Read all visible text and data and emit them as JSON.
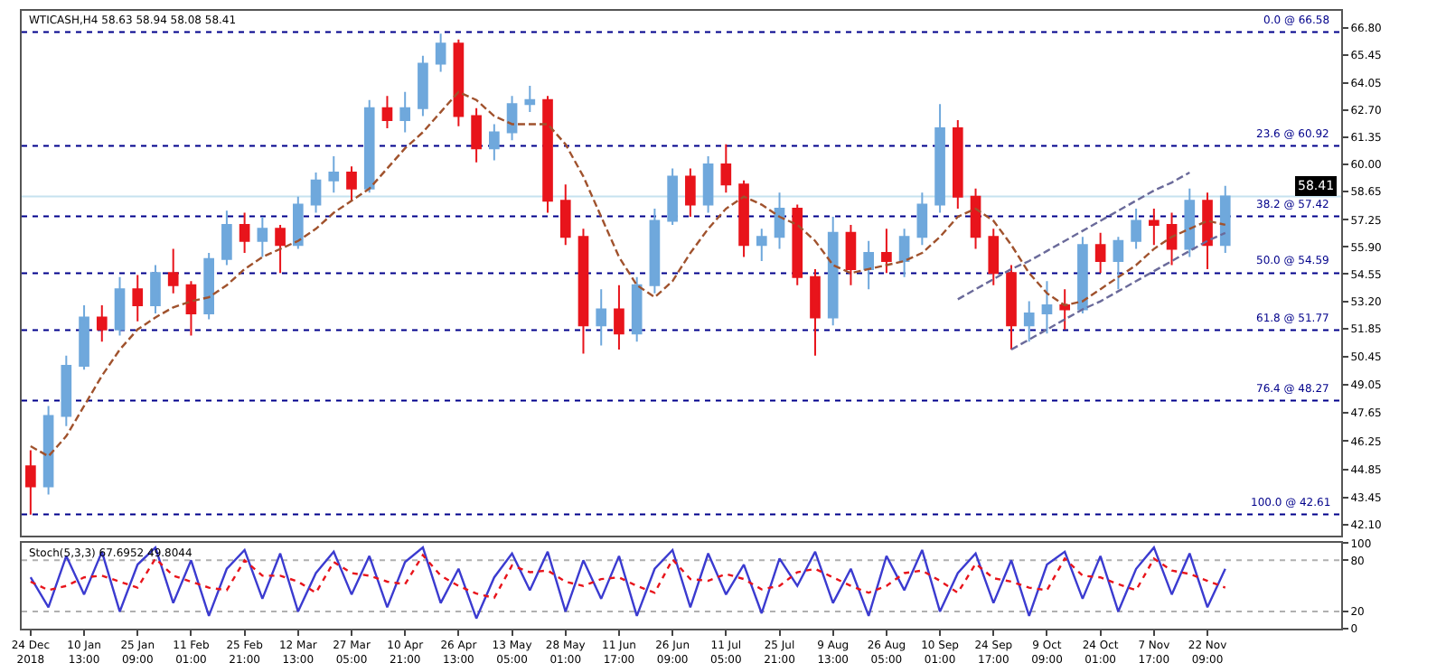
{
  "chart_data": [
    {
      "type": "candlestick",
      "title": "WTICASH,H4 58.63 58.94 58.08 58.41",
      "categories": [
        null,
        null,
        null,
        null,
        null,
        null,
        null,
        null,
        null,
        null,
        null,
        null,
        null,
        null,
        null,
        null,
        null,
        null,
        null,
        null,
        null,
        null,
        null,
        null,
        null,
        null,
        null,
        null,
        null,
        null,
        null,
        null,
        null,
        null,
        null,
        null,
        null,
        null,
        null,
        null,
        null,
        null,
        null,
        null,
        null,
        null,
        null,
        null,
        null,
        null,
        null,
        null,
        null,
        null,
        null,
        null,
        null,
        null,
        null,
        null,
        null,
        null,
        null,
        null,
        null,
        null,
        null,
        null
      ],
      "ohlc": [
        [
          45.0,
          45.8,
          42.6,
          44.0
        ],
        [
          44.0,
          48.0,
          43.6,
          47.5
        ],
        [
          47.5,
          50.5,
          47.0,
          50.0
        ],
        [
          50.0,
          53.0,
          49.8,
          52.4
        ],
        [
          52.4,
          53.0,
          51.2,
          51.8
        ],
        [
          51.8,
          54.4,
          51.5,
          53.8
        ],
        [
          53.8,
          54.5,
          52.2,
          53.0
        ],
        [
          53.0,
          55.0,
          52.6,
          54.6
        ],
        [
          54.6,
          55.8,
          53.6,
          54.0
        ],
        [
          54.0,
          54.2,
          51.5,
          52.6
        ],
        [
          52.6,
          55.6,
          52.3,
          55.3
        ],
        [
          55.3,
          57.7,
          55.0,
          57.0
        ],
        [
          57.0,
          57.6,
          55.6,
          56.2
        ],
        [
          56.2,
          57.4,
          55.4,
          56.8
        ],
        [
          56.8,
          57.0,
          54.6,
          56.0
        ],
        [
          56.0,
          58.4,
          55.8,
          58.0
        ],
        [
          58.0,
          59.6,
          57.6,
          59.2
        ],
        [
          59.2,
          60.4,
          58.6,
          59.6
        ],
        [
          59.6,
          59.9,
          58.2,
          58.8
        ],
        [
          58.8,
          63.2,
          58.6,
          62.8
        ],
        [
          62.8,
          63.4,
          61.8,
          62.2
        ],
        [
          62.2,
          63.6,
          61.6,
          62.8
        ],
        [
          62.8,
          65.4,
          62.4,
          65.0
        ],
        [
          65.0,
          66.5,
          64.6,
          66.0
        ],
        [
          66.0,
          66.2,
          61.9,
          62.4
        ],
        [
          62.4,
          62.8,
          60.1,
          60.8
        ],
        [
          60.8,
          62.0,
          60.2,
          61.6
        ],
        [
          61.6,
          63.4,
          61.2,
          63.0
        ],
        [
          63.0,
          63.9,
          62.6,
          63.2
        ],
        [
          63.2,
          63.4,
          57.6,
          58.2
        ],
        [
          58.2,
          59.0,
          56.0,
          56.4
        ],
        [
          56.4,
          56.8,
          50.6,
          52.0
        ],
        [
          52.0,
          53.8,
          51.0,
          52.8
        ],
        [
          52.8,
          54.0,
          50.8,
          51.6
        ],
        [
          51.6,
          54.4,
          51.2,
          54.0
        ],
        [
          54.0,
          57.8,
          53.6,
          57.2
        ],
        [
          57.2,
          59.8,
          57.0,
          59.4
        ],
        [
          59.4,
          59.8,
          57.4,
          58.0
        ],
        [
          58.0,
          60.4,
          57.6,
          60.0
        ],
        [
          60.0,
          61.0,
          58.6,
          59.0
        ],
        [
          59.0,
          59.2,
          55.4,
          56.0
        ],
        [
          56.0,
          56.8,
          55.2,
          56.4
        ],
        [
          56.4,
          58.6,
          55.8,
          57.8
        ],
        [
          57.8,
          58.0,
          54.0,
          54.4
        ],
        [
          54.4,
          54.8,
          50.5,
          52.4
        ],
        [
          52.4,
          57.4,
          52.0,
          56.6
        ],
        [
          56.6,
          57.0,
          54.0,
          54.8
        ],
        [
          54.8,
          56.2,
          53.8,
          55.6
        ],
        [
          55.6,
          56.8,
          54.6,
          55.2
        ],
        [
          55.2,
          56.8,
          54.4,
          56.4
        ],
        [
          56.4,
          58.6,
          56.0,
          58.0
        ],
        [
          58.0,
          63.0,
          57.6,
          61.8
        ],
        [
          61.8,
          62.2,
          57.8,
          58.4
        ],
        [
          58.4,
          58.8,
          55.8,
          56.4
        ],
        [
          56.4,
          56.8,
          54.0,
          54.6
        ],
        [
          54.6,
          55.0,
          50.8,
          52.0
        ],
        [
          52.0,
          53.2,
          51.2,
          52.6
        ],
        [
          52.6,
          54.2,
          51.6,
          53.0
        ],
        [
          53.0,
          53.8,
          51.8,
          52.8
        ],
        [
          52.8,
          56.4,
          52.6,
          56.0
        ],
        [
          56.0,
          56.6,
          54.6,
          55.2
        ],
        [
          55.2,
          56.4,
          53.8,
          56.2
        ],
        [
          56.2,
          57.8,
          55.8,
          57.2
        ],
        [
          57.2,
          57.8,
          56.0,
          57.0
        ],
        [
          57.0,
          57.6,
          55.0,
          55.8
        ],
        [
          55.8,
          58.8,
          55.4,
          58.2
        ],
        [
          58.2,
          58.6,
          54.8,
          56.0
        ],
        [
          56.0,
          58.94,
          55.6,
          58.41
        ]
      ],
      "colors": [
        "#e8141b",
        "#6fa8dc",
        "#6fa8dc",
        "#6fa8dc",
        "#e8141b",
        "#6fa8dc",
        "#e8141b",
        "#6fa8dc",
        "#e8141b",
        "#e8141b",
        "#6fa8dc",
        "#6fa8dc",
        "#e8141b",
        "#6fa8dc",
        "#e8141b",
        "#6fa8dc",
        "#6fa8dc",
        "#6fa8dc",
        "#e8141b",
        "#6fa8dc",
        "#e8141b",
        "#6fa8dc",
        "#6fa8dc",
        "#6fa8dc",
        "#e8141b",
        "#e8141b",
        "#6fa8dc",
        "#6fa8dc",
        "#6fa8dc",
        "#e8141b",
        "#e8141b",
        "#e8141b",
        "#6fa8dc",
        "#e8141b",
        "#6fa8dc",
        "#6fa8dc",
        "#6fa8dc",
        "#e8141b",
        "#6fa8dc",
        "#e8141b",
        "#e8141b",
        "#6fa8dc",
        "#6fa8dc",
        "#e8141b",
        "#e8141b",
        "#6fa8dc",
        "#e8141b",
        "#6fa8dc",
        "#e8141b",
        "#6fa8dc",
        "#6fa8dc",
        "#6fa8dc",
        "#e8141b",
        "#e8141b",
        "#e8141b",
        "#e8141b",
        "#6fa8dc",
        "#6fa8dc",
        "#e8141b",
        "#6fa8dc",
        "#e8141b",
        "#6fa8dc",
        "#6fa8dc",
        "#e8141b",
        "#e8141b",
        "#6fa8dc",
        "#e8141b",
        "#6fa8dc"
      ],
      "series": [
        {
          "type": "line",
          "color": "#a0522d",
          "line_style": "dashed",
          "values": [
            46.0,
            45.5,
            46.5,
            48.0,
            49.5,
            50.8,
            51.8,
            52.4,
            52.9,
            53.2,
            53.4,
            54.0,
            54.8,
            55.4,
            55.8,
            56.2,
            56.8,
            57.6,
            58.2,
            58.8,
            59.8,
            60.8,
            61.6,
            62.6,
            63.6,
            63.2,
            62.4,
            62.0,
            62.0,
            62.0,
            61.0,
            59.4,
            57.4,
            55.4,
            54.0,
            53.4,
            54.2,
            55.6,
            56.8,
            57.8,
            58.4,
            58.0,
            57.4,
            57.0,
            56.2,
            55.0,
            54.6,
            54.8,
            55.0,
            55.2,
            55.6,
            56.4,
            57.4,
            57.8,
            57.2,
            56.0,
            54.6,
            53.6,
            53.0,
            53.2,
            53.8,
            54.4,
            55.0,
            55.8,
            56.4,
            56.8,
            57.2,
            57.0
          ]
        },
        {
          "type": "line",
          "color": "#6a6a9a",
          "line_style": "dashed",
          "values": [
            null,
            null,
            null,
            null,
            null,
            null,
            null,
            null,
            null,
            null,
            null,
            null,
            null,
            null,
            null,
            null,
            null,
            null,
            null,
            null,
            null,
            null,
            null,
            null,
            null,
            null,
            null,
            null,
            null,
            null,
            null,
            null,
            null,
            null,
            null,
            null,
            null,
            null,
            null,
            null,
            null,
            null,
            null,
            null,
            null,
            null,
            null,
            null,
            null,
            null,
            null,
            null,
            53.3,
            53.8,
            54.3,
            54.8,
            55.2,
            55.7,
            56.2,
            56.7,
            57.2,
            57.7,
            58.2,
            58.7,
            59.1,
            59.6,
            null,
            null
          ]
        },
        {
          "type": "line",
          "color": "#6a6a9a",
          "line_style": "dashed",
          "values": [
            null,
            null,
            null,
            null,
            null,
            null,
            null,
            null,
            null,
            null,
            null,
            null,
            null,
            null,
            null,
            null,
            null,
            null,
            null,
            null,
            null,
            null,
            null,
            null,
            null,
            null,
            null,
            null,
            null,
            null,
            null,
            null,
            null,
            null,
            null,
            null,
            null,
            null,
            null,
            null,
            null,
            null,
            null,
            null,
            null,
            null,
            null,
            null,
            null,
            null,
            null,
            null,
            null,
            null,
            null,
            50.8,
            51.3,
            51.8,
            52.3,
            52.8,
            53.2,
            53.7,
            54.2,
            54.7,
            55.2,
            55.7,
            56.2,
            56.6
          ]
        }
      ],
      "ref_lines": [
        {
          "axis": "y",
          "value": 66.58,
          "label": "0.0 @ 66.58",
          "color": "#00008b",
          "line_style": "dotted"
        },
        {
          "axis": "y",
          "value": 60.92,
          "label": "23.6 @ 60.92",
          "color": "#00008b",
          "line_style": "dotted"
        },
        {
          "axis": "y",
          "value": 57.42,
          "label": "38.2 @ 57.42",
          "color": "#00008b",
          "line_style": "dotted"
        },
        {
          "axis": "y",
          "value": 54.59,
          "label": "50.0 @ 54.59",
          "color": "#00008b",
          "line_style": "dotted"
        },
        {
          "axis": "y",
          "value": 51.77,
          "label": "61.8 @ 51.77",
          "color": "#00008b",
          "line_style": "dotted"
        },
        {
          "axis": "y",
          "value": 48.27,
          "label": "76.4 @ 48.27",
          "color": "#00008b",
          "line_style": "dotted"
        },
        {
          "axis": "y",
          "value": 42.61,
          "label": "100.0 @ 42.61",
          "color": "#00008b",
          "line_style": "dotted"
        },
        {
          "axis": "y",
          "value": 58.41,
          "label": "58.41",
          "color": "#c6e2f0",
          "line_style": "solid"
        }
      ],
      "ylim": [
        41.55,
        67.63
      ],
      "yticks": [
        {
          "value": 42.1,
          "label": "42.10"
        },
        {
          "value": 43.45,
          "label": "43.45"
        },
        {
          "value": 44.85,
          "label": "44.85"
        },
        {
          "value": 46.25,
          "label": "46.25"
        },
        {
          "value": 47.65,
          "label": "47.65"
        },
        {
          "value": 49.05,
          "label": "49.05"
        },
        {
          "value": 50.45,
          "label": "50.45"
        },
        {
          "value": 51.85,
          "label": "51.85"
        },
        {
          "value": 53.2,
          "label": "53.20"
        },
        {
          "value": 54.55,
          "label": "54.55"
        },
        {
          "value": 55.9,
          "label": "55.90"
        },
        {
          "value": 57.25,
          "label": "57.25"
        },
        {
          "value": 58.65,
          "label": "58.65"
        },
        {
          "value": 60.0,
          "label": "60.00"
        },
        {
          "value": 61.35,
          "label": "61.35"
        },
        {
          "value": 62.7,
          "label": "62.70"
        },
        {
          "value": 64.05,
          "label": "64.05"
        },
        {
          "value": 65.45,
          "label": "65.45"
        },
        {
          "value": 66.8,
          "label": "66.80"
        }
      ],
      "tick_labels": "y"
    },
    {
      "type": "line",
      "title": "Stoch(5,3,3) 67.6952 49.8044",
      "categories": [
        "24 Dec 2018",
        null,
        null,
        "10 Jan 13:00",
        null,
        null,
        "25 Jan 09:00",
        null,
        null,
        "11 Feb 01:00",
        null,
        null,
        "25 Feb 21:00",
        null,
        null,
        "12 Mar 13:00",
        null,
        null,
        "27 Mar 05:00",
        null,
        null,
        "10 Apr 21:00",
        null,
        null,
        "26 Apr 13:00",
        null,
        null,
        "13 May 05:00",
        null,
        null,
        "28 May 01:00",
        null,
        null,
        "11 Jun 17:00",
        null,
        null,
        "26 Jun 09:00",
        null,
        null,
        "11 Jul 05:00",
        null,
        null,
        "25 Jul 21:00",
        null,
        null,
        "9 Aug 13:00",
        null,
        null,
        "26 Aug 05:00",
        null,
        null,
        "10 Sep 01:00",
        null,
        null,
        "24 Sep 17:00",
        null,
        null,
        "9 Oct 09:00",
        null,
        null,
        "24 Oct 01:00",
        null,
        null,
        "7 Nov 17:00",
        null,
        null,
        "22 Nov 09:00",
        null
      ],
      "series": [
        {
          "color": "#3b3bd0",
          "values": [
            60,
            25,
            85,
            40,
            90,
            20,
            75,
            95,
            30,
            80,
            15,
            70,
            92,
            35,
            88,
            20,
            65,
            90,
            40,
            85,
            25,
            78,
            95,
            30,
            70,
            12,
            60,
            88,
            45,
            90,
            20,
            80,
            35,
            85,
            15,
            70,
            92,
            25,
            88,
            40,
            75,
            18,
            82,
            50,
            90,
            30,
            70,
            15,
            85,
            45,
            92,
            20,
            65,
            88,
            30,
            80,
            15,
            75,
            90,
            35,
            85,
            20,
            70,
            95,
            40,
            88,
            25,
            70
          ]
        },
        {
          "color": "#e8141b",
          "line_style": "dotted",
          "values": [
            55,
            45,
            50,
            60,
            62,
            55,
            48,
            82,
            62,
            55,
            48,
            45,
            80,
            62,
            62,
            55,
            42,
            78,
            65,
            62,
            55,
            52,
            86,
            62,
            50,
            41,
            36,
            74,
            66,
            68,
            55,
            50,
            58,
            60,
            50,
            42,
            81,
            58,
            56,
            64,
            58,
            46,
            50,
            66,
            70,
            60,
            50,
            42,
            50,
            65,
            68,
            56,
            42,
            76,
            59,
            55,
            48,
            45,
            82,
            62,
            60,
            52,
            45,
            82,
            68,
            64,
            56,
            48
          ]
        }
      ],
      "ref_lines": [
        {
          "axis": "y",
          "value": 80,
          "color": "#b0b0b0",
          "line_style": "dotted"
        },
        {
          "axis": "y",
          "value": 20,
          "color": "#b0b0b0",
          "line_style": "dotted"
        }
      ],
      "ylim": [
        0,
        100
      ],
      "yticks": [
        0,
        20,
        80,
        100
      ]
    }
  ]
}
